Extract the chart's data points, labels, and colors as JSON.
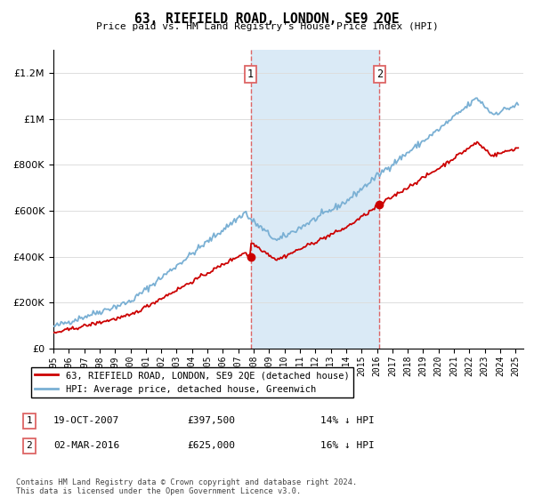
{
  "title": "63, RIEFIELD ROAD, LONDON, SE9 2QE",
  "subtitle": "Price paid vs. HM Land Registry's House Price Index (HPI)",
  "ylim": [
    0,
    1300000
  ],
  "yticks": [
    0,
    200000,
    400000,
    600000,
    800000,
    1000000,
    1200000
  ],
  "ytick_labels": [
    "£0",
    "£200K",
    "£400K",
    "£600K",
    "£800K",
    "£1M",
    "£1.2M"
  ],
  "xlim_start": 1995.0,
  "xlim_end": 2025.5,
  "purchase1_x": 2007.8,
  "purchase1_y": 397500,
  "purchase2_x": 2016.17,
  "purchase2_y": 625000,
  "legend_property_label": "63, RIEFIELD ROAD, LONDON, SE9 2QE (detached house)",
  "legend_hpi_label": "HPI: Average price, detached house, Greenwich",
  "annotation1_label": "1",
  "annotation1_date": "19-OCT-2007",
  "annotation1_price": "£397,500",
  "annotation1_hpi": "14% ↓ HPI",
  "annotation2_label": "2",
  "annotation2_date": "02-MAR-2016",
  "annotation2_price": "£625,000",
  "annotation2_hpi": "16% ↓ HPI",
  "footer": "Contains HM Land Registry data © Crown copyright and database right 2024.\nThis data is licensed under the Open Government Licence v3.0.",
  "property_color": "#cc0000",
  "hpi_color": "#7ab0d4",
  "shading_color": "#daeaf6",
  "vline_color": "#dd6666"
}
